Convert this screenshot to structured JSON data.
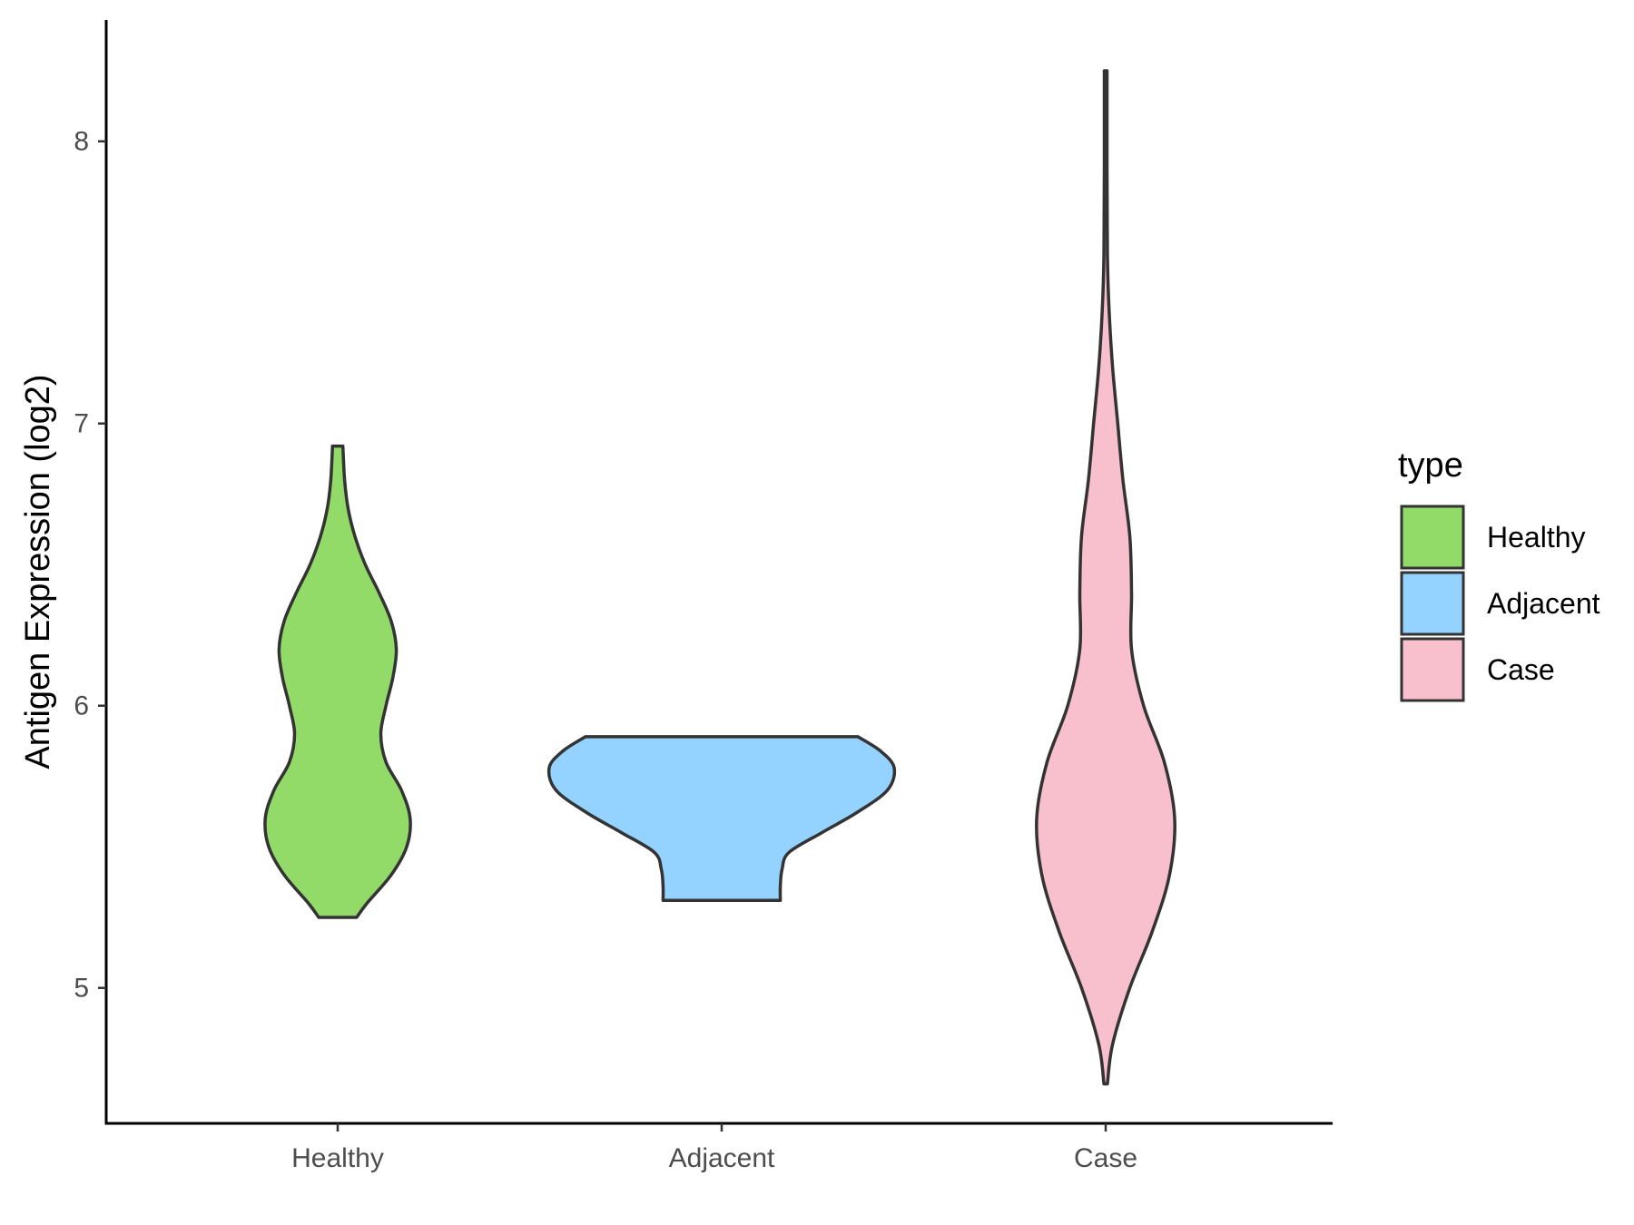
{
  "chart_data": {
    "type": "violin",
    "title": "",
    "xlabel": "",
    "ylabel": "Antigen Expression (log2)",
    "ylim": [
      4.52,
      8.43
    ],
    "yticks": [
      5,
      6,
      7,
      8
    ],
    "categories": [
      "Healthy",
      "Adjacent",
      "Case"
    ],
    "legend": {
      "title": "type",
      "position": "right",
      "entries": [
        "Healthy",
        "Adjacent",
        "Case"
      ]
    },
    "grid": false,
    "series": [
      {
        "name": "Healthy",
        "color": "#93DB69",
        "profile": [
          [
            5.25,
            0.11
          ],
          [
            5.3,
            0.17
          ],
          [
            5.4,
            0.31
          ],
          [
            5.5,
            0.4
          ],
          [
            5.6,
            0.42
          ],
          [
            5.7,
            0.37
          ],
          [
            5.8,
            0.28
          ],
          [
            5.9,
            0.25
          ],
          [
            6.0,
            0.28
          ],
          [
            6.1,
            0.32
          ],
          [
            6.2,
            0.34
          ],
          [
            6.3,
            0.31
          ],
          [
            6.4,
            0.24
          ],
          [
            6.5,
            0.16
          ],
          [
            6.6,
            0.1
          ],
          [
            6.7,
            0.06
          ],
          [
            6.8,
            0.04
          ],
          [
            6.92,
            0.03
          ]
        ]
      },
      {
        "name": "Adjacent",
        "color": "#94D2FF",
        "profile": [
          [
            5.31,
            0.34
          ],
          [
            5.36,
            0.34
          ],
          [
            5.42,
            0.35
          ],
          [
            5.48,
            0.39
          ],
          [
            5.55,
            0.58
          ],
          [
            5.62,
            0.78
          ],
          [
            5.7,
            0.96
          ],
          [
            5.78,
            1.0
          ],
          [
            5.84,
            0.92
          ],
          [
            5.89,
            0.79
          ]
        ]
      },
      {
        "name": "Case",
        "color": "#F7C0CC",
        "profile": [
          [
            4.66,
            0.01
          ],
          [
            4.8,
            0.04
          ],
          [
            5.0,
            0.14
          ],
          [
            5.2,
            0.27
          ],
          [
            5.4,
            0.37
          ],
          [
            5.6,
            0.4
          ],
          [
            5.8,
            0.34
          ],
          [
            6.0,
            0.22
          ],
          [
            6.2,
            0.15
          ],
          [
            6.4,
            0.15
          ],
          [
            6.6,
            0.14
          ],
          [
            6.8,
            0.1
          ],
          [
            7.0,
            0.07
          ],
          [
            7.2,
            0.04
          ],
          [
            7.4,
            0.02
          ],
          [
            7.6,
            0.01
          ],
          [
            7.9,
            0.008
          ],
          [
            8.25,
            0.008
          ]
        ]
      }
    ]
  }
}
